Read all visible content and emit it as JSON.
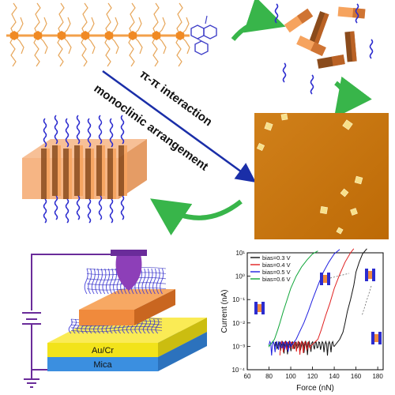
{
  "colors": {
    "backbone_node": "#f08a24",
    "backbone_line": "#f3a04a",
    "side_chain": "#e7a65a",
    "pendant_group": "#4040c8",
    "blue_tail": "#2c2ccf",
    "prism_light": "#f6a35e",
    "prism_dark": "#8a4b1c",
    "prism_side": "#c56828",
    "green_arrow": "#38b54a",
    "afm_bg": "#c7770b",
    "afm_crystal": "#f7e08a",
    "gold_layer": "#f2e31a",
    "mica_layer": "#3b8fe0",
    "wire": "#6a2c9a",
    "tip": "#8d3fb8",
    "chart_black": "#111111",
    "chart_red": "#e02020",
    "chart_blue": "#2020e0",
    "chart_green": "#11a63a"
  },
  "arrow_labels": {
    "line1": "π-π interaction",
    "line2": "monoclinic arrangement"
  },
  "device": {
    "gold_label": "Au/Cr",
    "mica_label": "Mica"
  },
  "icons": {
    "cycle_arrows": "curved-green-arrow",
    "ground": "ground-icon",
    "battery": "battery-icon"
  },
  "chart_data": {
    "type": "line",
    "title": "",
    "xlabel": "Force (nN)",
    "ylabel": "Current (nA)",
    "xlim": [
      60,
      185
    ],
    "ylim_log10": [
      -4,
      1
    ],
    "x_ticks": [
      "60",
      "80",
      "100",
      "120",
      "140",
      "160",
      "180"
    ],
    "y_ticks": [
      "10⁻⁴",
      "10⁻³",
      "10⁻²",
      "10⁻¹",
      "10⁰",
      "10¹"
    ],
    "log_scale_y": true,
    "legend_position": "top-left",
    "series": [
      {
        "name": "bias=0.3 V",
        "color": "#111111",
        "x": [
          85,
          100,
          110,
          120,
          130,
          140,
          145,
          148,
          150,
          152,
          155,
          158,
          160,
          163,
          166,
          170
        ],
        "y": [
          0.001,
          0.001,
          0.0009,
          0.001,
          0.0008,
          0.001,
          0.002,
          0.004,
          0.01,
          0.03,
          0.1,
          0.4,
          1.5,
          4,
          9,
          15
        ]
      },
      {
        "name": "bias=0.4 V",
        "color": "#e02020",
        "x": [
          90,
          100,
          110,
          118,
          125,
          128,
          132,
          136,
          140,
          145,
          150,
          155,
          158
        ],
        "y": [
          0.001,
          0.001,
          0.0009,
          0.001,
          0.002,
          0.005,
          0.02,
          0.07,
          0.3,
          1.2,
          4,
          10,
          15
        ]
      },
      {
        "name": "bias=0.5 V",
        "color": "#2020e0",
        "x": [
          80,
          90,
          100,
          105,
          108,
          112,
          116,
          120,
          125,
          130,
          135,
          140,
          145
        ],
        "y": [
          0.001,
          0.0009,
          0.001,
          0.002,
          0.004,
          0.01,
          0.03,
          0.1,
          0.4,
          1.5,
          4,
          9,
          14
        ]
      },
      {
        "name": "bias=0.6 V",
        "color": "#11a63a",
        "x": [
          80,
          85,
          88,
          90,
          93,
          96,
          100,
          105,
          110,
          115,
          120,
          125
        ],
        "y": [
          0.001,
          0.002,
          0.005,
          0.01,
          0.03,
          0.08,
          0.3,
          1,
          2.5,
          5,
          9,
          12
        ]
      }
    ]
  }
}
